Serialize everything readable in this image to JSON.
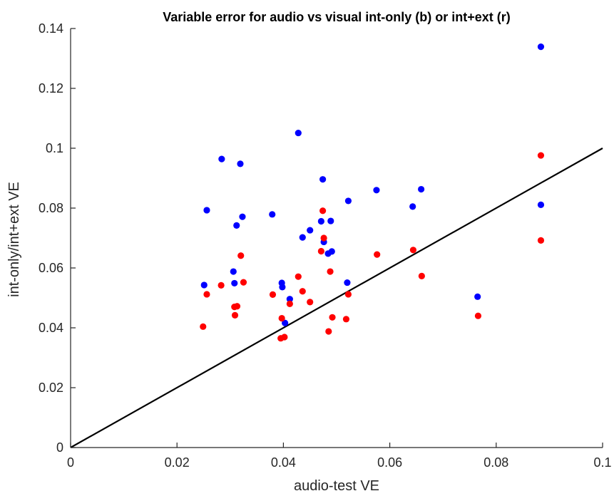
{
  "chart_data": {
    "type": "scatter",
    "title": "Variable error for audio vs visual int-only (b) or int+ext (r)",
    "xlabel": "audio-test VE",
    "ylabel": "int-only/int+ext VE",
    "xlim": [
      0,
      0.1
    ],
    "ylim": [
      0,
      0.14
    ],
    "x_ticks": [
      0,
      0.02,
      0.04,
      0.06,
      0.08,
      0.1
    ],
    "x_tick_labels": [
      "0",
      "0.02",
      "0.04",
      "0.06",
      "0.08",
      "0.1"
    ],
    "y_ticks": [
      0,
      0.02,
      0.04,
      0.06,
      0.08,
      0.1,
      0.12,
      0.14
    ],
    "y_tick_labels": [
      "0",
      "0.02",
      "0.04",
      "0.06",
      "0.08",
      "0.1",
      "0.12",
      "0.14"
    ],
    "grid": false,
    "reference_line": {
      "x": [
        0,
        0.1
      ],
      "y": [
        0,
        0.1
      ],
      "color": "#000000"
    },
    "series": [
      {
        "color": "#0000ff",
        "points": [
          [
            0.0251,
            0.0543
          ],
          [
            0.0256,
            0.0793
          ],
          [
            0.0284,
            0.0964
          ],
          [
            0.0306,
            0.0588
          ],
          [
            0.0308,
            0.0549
          ],
          [
            0.0312,
            0.0742
          ],
          [
            0.0319,
            0.0948
          ],
          [
            0.0323,
            0.0771
          ],
          [
            0.0379,
            0.0779
          ],
          [
            0.0397,
            0.055
          ],
          [
            0.0398,
            0.0536
          ],
          [
            0.0403,
            0.0416
          ],
          [
            0.0412,
            0.0496
          ],
          [
            0.0428,
            0.1051
          ],
          [
            0.0436,
            0.0702
          ],
          [
            0.045,
            0.0726
          ],
          [
            0.0471,
            0.0756
          ],
          [
            0.0474,
            0.0896
          ],
          [
            0.0476,
            0.0687
          ],
          [
            0.0484,
            0.0648
          ],
          [
            0.0489,
            0.0757
          ],
          [
            0.0491,
            0.0655
          ],
          [
            0.052,
            0.0551
          ],
          [
            0.0522,
            0.0824
          ],
          [
            0.0575,
            0.086
          ],
          [
            0.0643,
            0.0805
          ],
          [
            0.0659,
            0.0863
          ],
          [
            0.0765,
            0.0504
          ],
          [
            0.0884,
            0.1339
          ],
          [
            0.0884,
            0.0811
          ]
        ]
      },
      {
        "color": "#ff0000",
        "points": [
          [
            0.0249,
            0.0404
          ],
          [
            0.0256,
            0.0512
          ],
          [
            0.0283,
            0.0542
          ],
          [
            0.0308,
            0.047
          ],
          [
            0.0309,
            0.0442
          ],
          [
            0.0313,
            0.0472
          ],
          [
            0.032,
            0.0641
          ],
          [
            0.0325,
            0.0552
          ],
          [
            0.038,
            0.0511
          ],
          [
            0.0395,
            0.0365
          ],
          [
            0.0397,
            0.0432
          ],
          [
            0.0402,
            0.0369
          ],
          [
            0.0412,
            0.048
          ],
          [
            0.0428,
            0.0571
          ],
          [
            0.0436,
            0.0522
          ],
          [
            0.045,
            0.0486
          ],
          [
            0.0471,
            0.0656
          ],
          [
            0.0474,
            0.0791
          ],
          [
            0.0476,
            0.07
          ],
          [
            0.0485,
            0.0388
          ],
          [
            0.0488,
            0.0588
          ],
          [
            0.0492,
            0.0435
          ],
          [
            0.0518,
            0.0429
          ],
          [
            0.0522,
            0.0512
          ],
          [
            0.0576,
            0.0645
          ],
          [
            0.0644,
            0.066
          ],
          [
            0.066,
            0.0573
          ],
          [
            0.0766,
            0.044
          ],
          [
            0.0884,
            0.0976
          ],
          [
            0.0884,
            0.0692
          ]
        ]
      }
    ]
  }
}
